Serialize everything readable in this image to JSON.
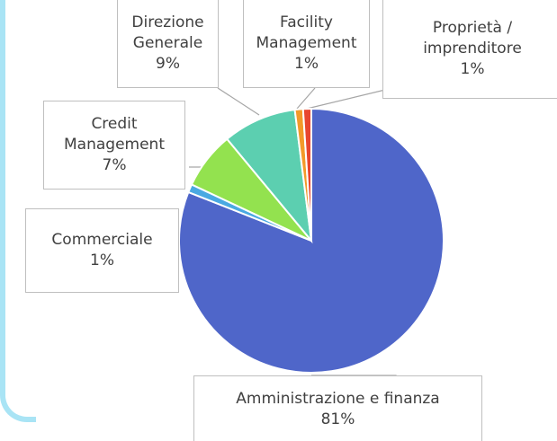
{
  "chart_data": {
    "type": "pie",
    "categories": [
      "Amministrazione e finanza",
      "Commerciale",
      "Credit Management",
      "Direzione Generale",
      "Facility Management",
      "Proprietà / imprenditore"
    ],
    "values": [
      81,
      1,
      7,
      9,
      1,
      1
    ],
    "value_labels": [
      "81%",
      "1%",
      "7%",
      "9%",
      "1%",
      "1%"
    ],
    "colors": [
      "#4f66c9",
      "#4aa9e2",
      "#93e24f",
      "#5ccfb0",
      "#f39a2a",
      "#e8462f"
    ]
  }
}
